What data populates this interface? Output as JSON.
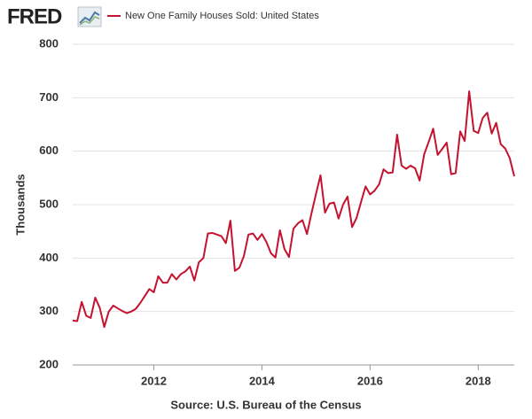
{
  "brand": "FRED",
  "chart_data": {
    "type": "line",
    "ylabel": "Thousands",
    "source": "Source: U.S. Bureau of the Census",
    "x": [
      2010.5,
      2010.583,
      2010.667,
      2010.75,
      2010.833,
      2010.917,
      2011,
      2011.083,
      2011.167,
      2011.25,
      2011.333,
      2011.417,
      2011.5,
      2011.583,
      2011.667,
      2011.75,
      2011.833,
      2011.917,
      2012,
      2012.083,
      2012.167,
      2012.25,
      2012.333,
      2012.417,
      2012.5,
      2012.583,
      2012.667,
      2012.75,
      2012.833,
      2012.917,
      2013,
      2013.083,
      2013.167,
      2013.25,
      2013.333,
      2013.417,
      2013.5,
      2013.583,
      2013.667,
      2013.75,
      2013.833,
      2013.917,
      2014,
      2014.083,
      2014.167,
      2014.25,
      2014.333,
      2014.417,
      2014.5,
      2014.583,
      2014.667,
      2014.75,
      2014.833,
      2014.917,
      2015,
      2015.083,
      2015.167,
      2015.25,
      2015.333,
      2015.417,
      2015.5,
      2015.583,
      2015.667,
      2015.75,
      2015.833,
      2015.917,
      2016,
      2016.083,
      2016.167,
      2016.25,
      2016.333,
      2016.417,
      2016.5,
      2016.583,
      2016.667,
      2016.75,
      2016.833,
      2016.917,
      2017,
      2017.083,
      2017.167,
      2017.25,
      2017.333,
      2017.417,
      2017.5,
      2017.583,
      2017.667,
      2017.75,
      2017.833,
      2017.917,
      2018,
      2018.083,
      2018.167,
      2018.25,
      2018.333,
      2018.417,
      2018.5,
      2018.583,
      2018.667
    ],
    "series": [
      {
        "name": "New One Family Houses Sold: United States",
        "color": "#c4122f",
        "values": [
          283,
          282,
          318,
          292,
          288,
          326,
          307,
          271,
          300,
          311,
          306,
          301,
          297,
          300,
          305,
          316,
          329,
          342,
          336,
          366,
          354,
          354,
          370,
          360,
          370,
          375,
          384,
          358,
          392,
          400,
          446,
          447,
          444,
          441,
          428,
          470,
          376,
          382,
          404,
          444,
          446,
          434,
          445,
          430,
          409,
          401,
          452,
          417,
          402,
          455,
          465,
          471,
          445,
          484,
          520,
          555,
          485,
          502,
          504,
          474,
          500,
          515,
          458,
          475,
          505,
          534,
          519,
          526,
          538,
          566,
          559,
          560,
          631,
          573,
          567,
          573,
          568,
          545,
          594,
          617,
          642,
          593,
          604,
          616,
          557,
          559,
          637,
          619,
          712,
          638,
          634,
          662,
          672,
          633,
          653,
          613,
          605,
          587,
          553
        ]
      }
    ],
    "xlim": [
      2010.5,
      2018.667
    ],
    "xticks": [
      2012,
      2014,
      2016,
      2018
    ],
    "ylim": [
      200,
      800
    ],
    "yticks": [
      200,
      300,
      400,
      500,
      600,
      700,
      800
    ],
    "grid": true
  }
}
